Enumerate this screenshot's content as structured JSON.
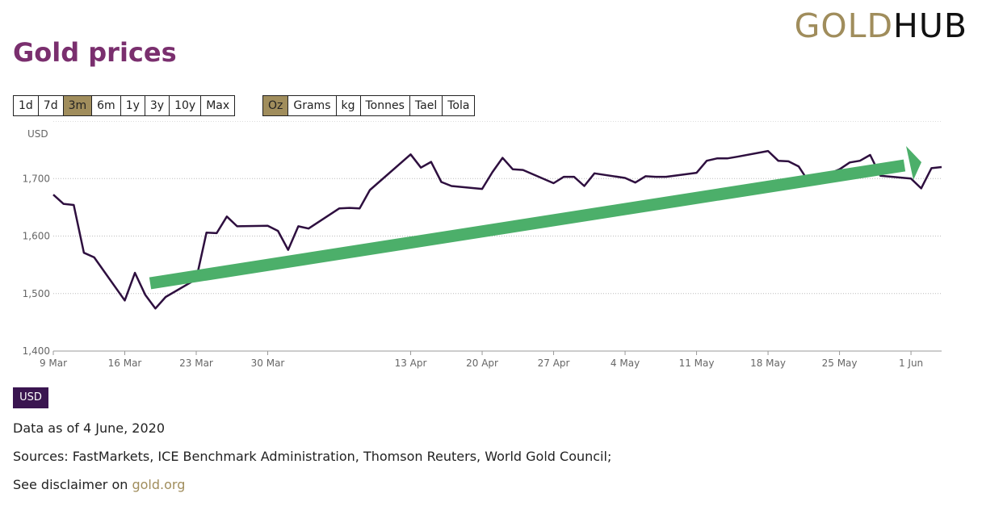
{
  "header": {
    "title": "Gold prices",
    "logo_part1": "GOLD",
    "logo_part2": "HUB"
  },
  "period_buttons": [
    {
      "label": "1d",
      "active": false
    },
    {
      "label": "7d",
      "active": false
    },
    {
      "label": "3m",
      "active": true
    },
    {
      "label": "6m",
      "active": false
    },
    {
      "label": "1y",
      "active": false
    },
    {
      "label": "3y",
      "active": false
    },
    {
      "label": "10y",
      "active": false
    },
    {
      "label": "Max",
      "active": false
    }
  ],
  "unit_buttons": [
    {
      "label": "Oz",
      "active": true
    },
    {
      "label": "Grams",
      "active": false
    },
    {
      "label": "kg",
      "active": false
    },
    {
      "label": "Tonnes",
      "active": false
    },
    {
      "label": "Tael",
      "active": false
    },
    {
      "label": "Tola",
      "active": false
    }
  ],
  "currency_badge": "USD",
  "footer": {
    "data_as_of": "Data as of 4 June, 2020",
    "sources": "Sources: FastMarkets, ICE Benchmark Administration, Thomson Reuters, World Gold Council;",
    "disclaimer_prefix": "See disclaimer on ",
    "disclaimer_link": "gold.org"
  },
  "colors": {
    "title": "#7a2f6e",
    "accent_gold": "#a08d5c",
    "line": "#2e0f3f",
    "arrow": "#4caf6a",
    "badge": "#3a1550"
  },
  "chart_data": {
    "type": "line",
    "ylabel": "USD",
    "ylim": [
      1400,
      1800
    ],
    "yticks": [
      1400,
      1500,
      1600,
      1700
    ],
    "ytick_labels": [
      "1,400",
      "1,500",
      "1,600",
      "1,700"
    ],
    "xlim": [
      "2020-03-09",
      "2020-06-04"
    ],
    "xticks": [
      {
        "date": "2020-03-09",
        "label": "9 Mar"
      },
      {
        "date": "2020-03-16",
        "label": "16 Mar"
      },
      {
        "date": "2020-03-23",
        "label": "23 Mar"
      },
      {
        "date": "2020-03-30",
        "label": "30 Mar"
      },
      {
        "date": "2020-04-13",
        "label": "13 Apr"
      },
      {
        "date": "2020-04-20",
        "label": "20 Apr"
      },
      {
        "date": "2020-04-27",
        "label": "27 Apr"
      },
      {
        "date": "2020-05-04",
        "label": "4 May"
      },
      {
        "date": "2020-05-11",
        "label": "11 May"
      },
      {
        "date": "2020-05-18",
        "label": "18 May"
      },
      {
        "date": "2020-05-25",
        "label": "25 May"
      },
      {
        "date": "2020-06-01",
        "label": "1 Jun"
      }
    ],
    "grid": "horizontal dotted",
    "series": [
      {
        "x": [
          "2020-03-09",
          "2020-03-10",
          "2020-03-11",
          "2020-03-12",
          "2020-03-13",
          "2020-03-16",
          "2020-03-17",
          "2020-03-18",
          "2020-03-19",
          "2020-03-20",
          "2020-03-23",
          "2020-03-24",
          "2020-03-25",
          "2020-03-26",
          "2020-03-27",
          "2020-03-30",
          "2020-03-31",
          "2020-04-01",
          "2020-04-02",
          "2020-04-03",
          "2020-04-06",
          "2020-04-07",
          "2020-04-08",
          "2020-04-09",
          "2020-04-13",
          "2020-04-14",
          "2020-04-15",
          "2020-04-16",
          "2020-04-17",
          "2020-04-20",
          "2020-04-21",
          "2020-04-22",
          "2020-04-23",
          "2020-04-24",
          "2020-04-27",
          "2020-04-28",
          "2020-04-29",
          "2020-04-30",
          "2020-05-01",
          "2020-05-04",
          "2020-05-05",
          "2020-05-06",
          "2020-05-07",
          "2020-05-08",
          "2020-05-11",
          "2020-05-12",
          "2020-05-13",
          "2020-05-14",
          "2020-05-15",
          "2020-05-18",
          "2020-05-19",
          "2020-05-20",
          "2020-05-21",
          "2020-05-22",
          "2020-05-25",
          "2020-05-26",
          "2020-05-27",
          "2020-05-28",
          "2020-05-29",
          "2020-06-01",
          "2020-06-02",
          "2020-06-03",
          "2020-06-04"
        ],
        "values": [
          1672,
          1656,
          1654,
          1571,
          1563,
          1488,
          1536,
          1498,
          1474,
          1494,
          1525,
          1606,
          1605,
          1634,
          1617,
          1618,
          1609,
          1576,
          1617,
          1613,
          1648,
          1649,
          1648,
          1680,
          1742,
          1719,
          1729,
          1694,
          1687,
          1682,
          1711,
          1736,
          1716,
          1715,
          1692,
          1703,
          1703,
          1687,
          1709,
          1701,
          1693,
          1704,
          1703,
          1703,
          1710,
          1731,
          1735,
          1735,
          1738,
          1748,
          1731,
          1730,
          1721,
          1694,
          1716,
          1728,
          1731,
          1741,
          1705,
          1700,
          1683,
          1718,
          1720
        ]
      }
    ],
    "annotation": "green upward trend arrow"
  }
}
